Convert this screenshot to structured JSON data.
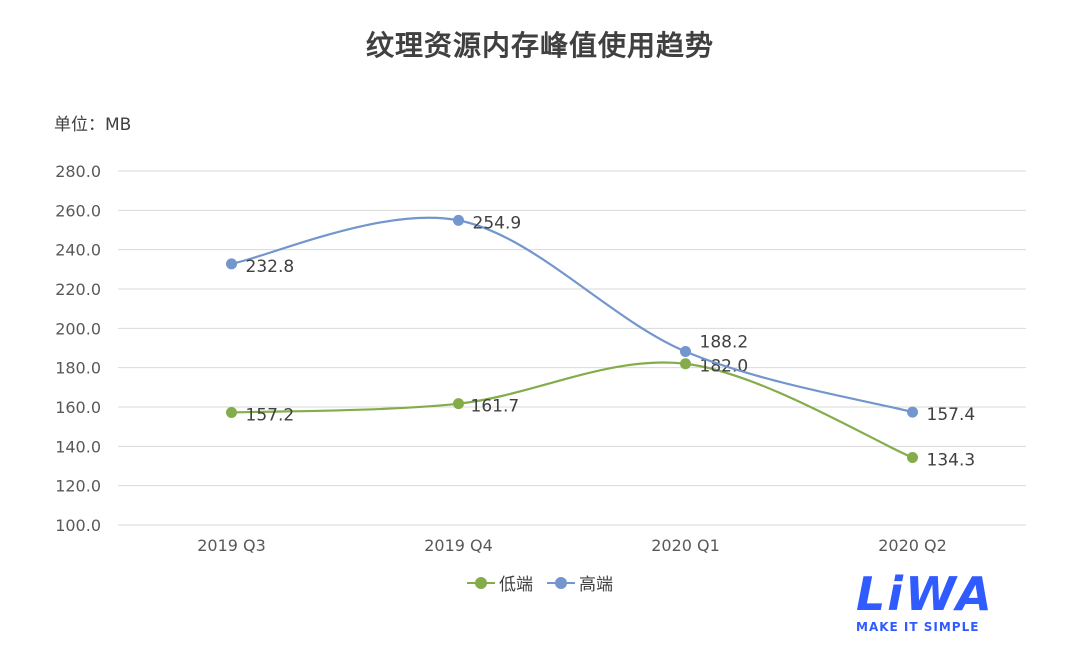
{
  "title": "纹理资源内存峰值使用趋势",
  "unit_label": "单位：MB",
  "logo": {
    "mark": "LiWA",
    "tagline": "MAKE IT SIMPLE"
  },
  "chart_data": {
    "type": "line",
    "categories": [
      "2019 Q3",
      "2019 Q4",
      "2020 Q1",
      "2020 Q2"
    ],
    "series": [
      {
        "name": "低端",
        "color": "#84ac4b",
        "values": [
          157.2,
          161.7,
          182.0,
          134.3
        ],
        "labels": [
          "157.2",
          "161.7",
          "182.0",
          "134.3"
        ]
      },
      {
        "name": "高端",
        "color": "#7296cd",
        "values": [
          232.8,
          254.9,
          188.2,
          157.4
        ],
        "labels": [
          "232.8",
          "254.9",
          "188.2",
          "157.4"
        ]
      }
    ],
    "yticks": [
      "100.0",
      "120.0",
      "140.0",
      "160.0",
      "180.0",
      "200.0",
      "220.0",
      "240.0",
      "260.0",
      "280.0"
    ],
    "ylim": [
      100,
      280
    ],
    "grid": true,
    "smooth": true,
    "legend_position": "bottom"
  }
}
